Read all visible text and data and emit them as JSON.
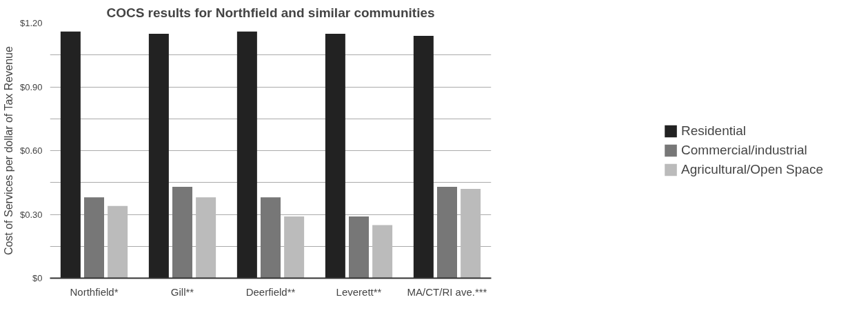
{
  "chart_data": {
    "type": "bar",
    "title": "COCS results for Northfield and similar communities",
    "ylabel": "Cost of Services per dollar of Tax Revenue",
    "categories": [
      "Northfield*",
      "Gill**",
      "Deerfield**",
      "Leverett**",
      "MA/CT/RI ave.***"
    ],
    "series": [
      {
        "name": "Residential",
        "color": "#222222",
        "values": [
          1.16,
          1.15,
          1.16,
          1.15,
          1.14
        ]
      },
      {
        "name": "Commercial/industrial",
        "color": "#777777",
        "values": [
          0.38,
          0.43,
          0.38,
          0.29,
          0.43
        ]
      },
      {
        "name": "Agricultural/Open Space",
        "color": "#bbbbbb",
        "values": [
          0.34,
          0.38,
          0.29,
          0.25,
          0.42
        ]
      }
    ],
    "ylim": [
      0,
      1.2
    ],
    "yticks": [
      {
        "value": 0,
        "label": "$0"
      },
      {
        "value": 0.15,
        "label": null
      },
      {
        "value": 0.3,
        "label": "$0.30"
      },
      {
        "value": 0.45,
        "label": null
      },
      {
        "value": 0.6,
        "label": "$0.60"
      },
      {
        "value": 0.75,
        "label": null
      },
      {
        "value": 0.9,
        "label": "$0.90"
      },
      {
        "value": 1.05,
        "label": null
      },
      {
        "value": 1.2,
        "label": "$1.20"
      }
    ],
    "grid": "y",
    "legend": "right"
  }
}
